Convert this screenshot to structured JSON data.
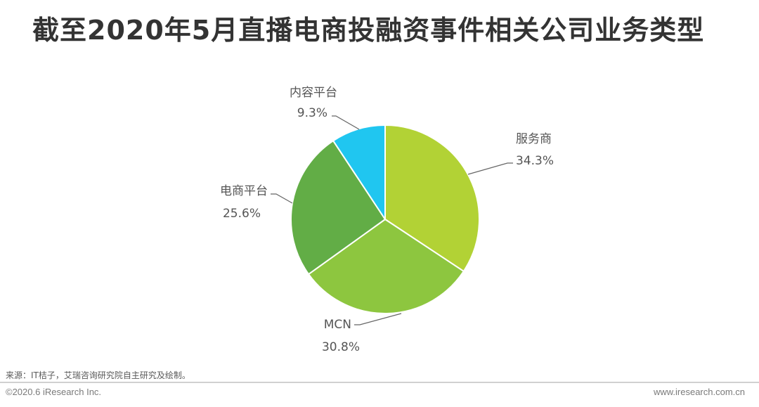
{
  "title": "截至2020年5月直播电商投融资事件相关公司业务类型",
  "chart_data": {
    "type": "pie",
    "title": "截至2020年5月直播电商投融资事件相关公司业务类型",
    "slices": [
      {
        "name": "服务商",
        "value": 34.3,
        "label": "34.3%",
        "color": "#b2d235"
      },
      {
        "name": "MCN",
        "value": 30.8,
        "label": "30.8%",
        "color": "#8dc63f"
      },
      {
        "name": "电商平台",
        "value": 25.6,
        "label": "25.6%",
        "color": "#62ad46"
      },
      {
        "name": "内容平台",
        "value": 9.3,
        "label": "9.3%",
        "color": "#20c6f0"
      }
    ],
    "start_angle": "12 o'clock",
    "direction": "clockwise"
  },
  "footer": {
    "source": "来源：IT桔子，艾瑞咨询研究院自主研究及绘制。",
    "copyright": "©2020.6 iResearch Inc.",
    "website": "www.iresearch.com.cn"
  }
}
